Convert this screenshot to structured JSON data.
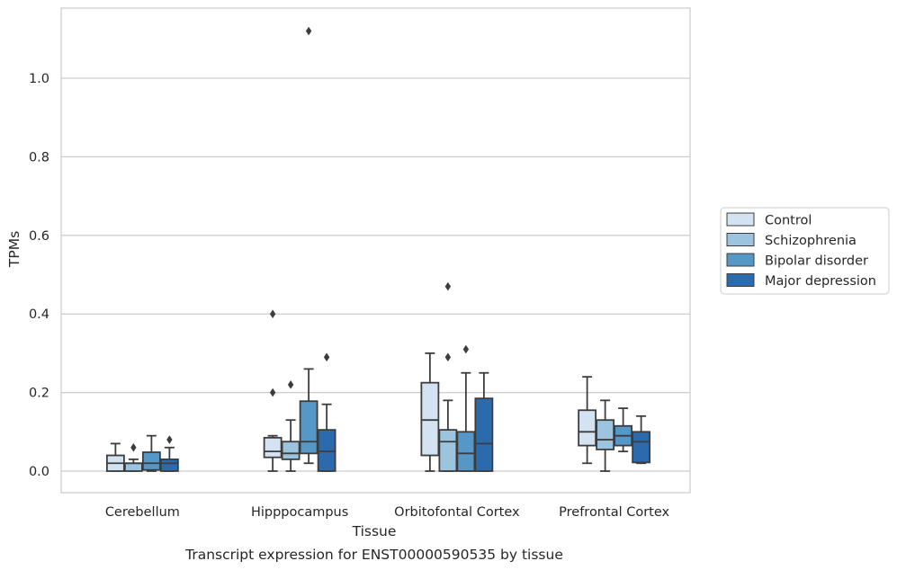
{
  "chart_data": {
    "type": "box",
    "title": "",
    "caption": "Transcript expression for ENST00000590535 by tissue",
    "xlabel": "Tissue",
    "ylabel": "TPMs",
    "ylim": [
      -0.055,
      1.18
    ],
    "yticks": [
      0.0,
      0.2,
      0.4,
      0.6,
      0.8,
      1.0
    ],
    "ytick_labels": [
      "0.0",
      "0.2",
      "0.4",
      "0.6",
      "0.8",
      "1.0"
    ],
    "grid": "horizontal",
    "legend_position": "right",
    "categories": [
      "Cerebellum",
      "Hipppocampus",
      "Orbitofontal Cortex",
      "Prefrontal Cortex"
    ],
    "series": [
      {
        "name": "Control",
        "color": "#d4e3f1",
        "boxes": [
          {
            "whislo": 0.0,
            "q1": 0.0,
            "med": 0.02,
            "q3": 0.04,
            "whishi": 0.07,
            "fliers": []
          },
          {
            "whislo": 0.0,
            "q1": 0.035,
            "med": 0.05,
            "q3": 0.085,
            "whishi": 0.09,
            "fliers": [
              0.2,
              0.4
            ]
          },
          {
            "whislo": 0.0,
            "q1": 0.04,
            "med": 0.13,
            "q3": 0.225,
            "whishi": 0.3,
            "fliers": []
          },
          {
            "whislo": 0.02,
            "q1": 0.065,
            "med": 0.1,
            "q3": 0.155,
            "whishi": 0.24,
            "fliers": []
          }
        ]
      },
      {
        "name": "Schizophrenia",
        "color": "#9cc4de",
        "boxes": [
          {
            "whislo": 0.0,
            "q1": 0.0,
            "med": 0.02,
            "q3": 0.02,
            "whishi": 0.03,
            "fliers": [
              0.06
            ]
          },
          {
            "whislo": 0.0,
            "q1": 0.03,
            "med": 0.045,
            "q3": 0.075,
            "whishi": 0.13,
            "fliers": [
              0.22
            ]
          },
          {
            "whislo": 0.0,
            "q1": 0.0,
            "med": 0.075,
            "q3": 0.105,
            "whishi": 0.18,
            "fliers": [
              0.29,
              0.47
            ]
          },
          {
            "whislo": 0.0,
            "q1": 0.055,
            "med": 0.08,
            "q3": 0.13,
            "whishi": 0.18,
            "fliers": []
          }
        ]
      },
      {
        "name": "Bipolar disorder",
        "color": "#5597c6",
        "boxes": [
          {
            "whislo": 0.0,
            "q1": 0.003,
            "med": 0.02,
            "q3": 0.048,
            "whishi": 0.09,
            "fliers": []
          },
          {
            "whislo": 0.02,
            "q1": 0.045,
            "med": 0.075,
            "q3": 0.178,
            "whishi": 0.26,
            "fliers": [
              1.12
            ]
          },
          {
            "whislo": 0.0,
            "q1": 0.0,
            "med": 0.045,
            "q3": 0.1,
            "whishi": 0.25,
            "fliers": [
              0.31
            ]
          },
          {
            "whislo": 0.05,
            "q1": 0.065,
            "med": 0.09,
            "q3": 0.115,
            "whishi": 0.16,
            "fliers": []
          }
        ]
      },
      {
        "name": "Major depression",
        "color": "#2a6aad",
        "boxes": [
          {
            "whislo": 0.0,
            "q1": 0.0,
            "med": 0.02,
            "q3": 0.03,
            "whishi": 0.06,
            "fliers": [
              0.08
            ]
          },
          {
            "whislo": 0.0,
            "q1": 0.0,
            "med": 0.05,
            "q3": 0.105,
            "whishi": 0.17,
            "fliers": [
              0.29
            ]
          },
          {
            "whislo": 0.0,
            "q1": 0.0,
            "med": 0.07,
            "q3": 0.185,
            "whishi": 0.25,
            "fliers": []
          },
          {
            "whislo": 0.02,
            "q1": 0.022,
            "med": 0.075,
            "q3": 0.1,
            "whishi": 0.14,
            "fliers": []
          }
        ]
      }
    ]
  }
}
